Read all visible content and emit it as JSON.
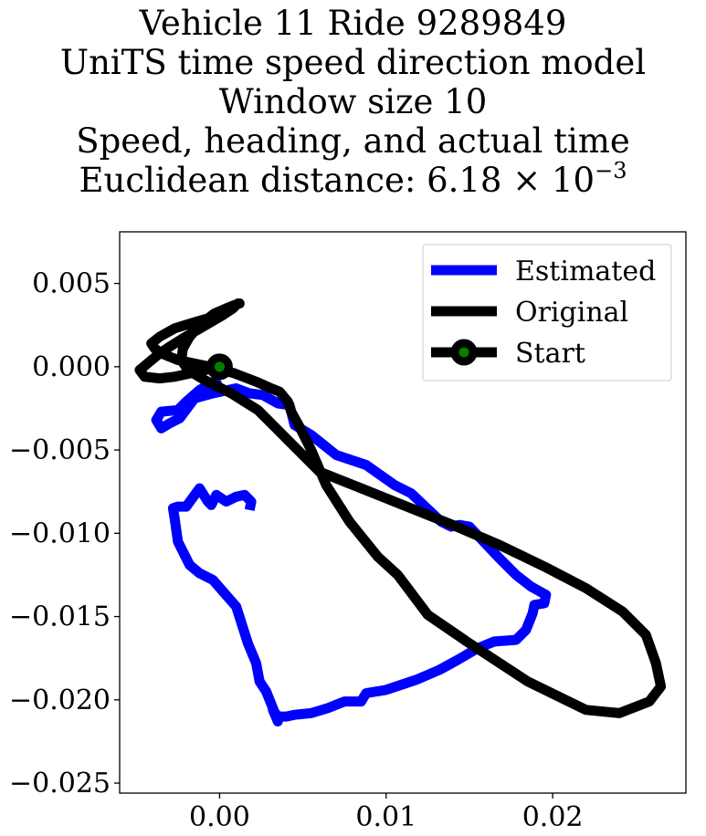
{
  "title_lines": [
    "Vehicle 11 Ride 9289849",
    "UniTS time speed direction model",
    "Window size 10",
    "Speed, heading, and actual time"
  ],
  "distance_line": {
    "prefix": "Euclidean distance: 6.18",
    "times": "×",
    "base": "10",
    "exponent": "−3"
  },
  "chart_data": {
    "type": "line",
    "xlim": [
      -0.006,
      0.028
    ],
    "ylim": [
      -0.0256,
      0.0081
    ],
    "xticks": [
      0.0,
      0.01,
      0.02
    ],
    "xtick_labels": [
      "0.00",
      "0.01",
      "0.02"
    ],
    "yticks": [
      0.005,
      0.0,
      -0.005,
      -0.01,
      -0.015,
      -0.02,
      -0.025
    ],
    "ytick_labels": [
      "0.005",
      "0.000",
      "−0.005",
      "−0.010",
      "−0.015",
      "−0.020",
      "−0.025"
    ],
    "grid": false,
    "legend_position": "top-right",
    "series": [
      {
        "name": "Estimated",
        "color": "#0000ff",
        "x": [
          0.0,
          -0.0012,
          -0.002,
          -0.0025,
          -0.0035,
          -0.0038,
          -0.0035,
          -0.003,
          -0.0024,
          -0.0015,
          -0.0004,
          0.001,
          0.0018,
          0.0026,
          0.0035,
          0.0042,
          0.0045,
          0.0055,
          0.007,
          0.0088,
          0.0105,
          0.0115,
          0.0133,
          0.0139,
          0.0144,
          0.015,
          0.0168,
          0.0178,
          0.0187,
          0.0196,
          0.0195,
          0.0189,
          0.0188,
          0.0184,
          0.0178,
          0.0165,
          0.0155,
          0.0143,
          0.0132,
          0.0118,
          0.01,
          0.0088,
          0.0085,
          0.0075,
          0.0065,
          0.0055,
          0.0045,
          0.004,
          0.0035,
          0.0032,
          0.0035,
          0.0032,
          0.0028,
          0.0024,
          0.0022,
          0.0017,
          0.001,
          -0.0004,
          -0.0012,
          -0.0018,
          -0.0025,
          -0.0027,
          -0.0028,
          -0.0025,
          -0.002,
          -0.0012,
          -0.0007,
          -0.0005,
          -0.0002,
          0.0004,
          0.001,
          0.0015,
          0.0019,
          0.0018
        ],
        "y": [
          -0.0007,
          -0.0014,
          -0.0021,
          -0.0026,
          -0.0027,
          -0.0032,
          -0.0037,
          -0.0034,
          -0.0031,
          -0.0019,
          -0.0016,
          -0.0013,
          -0.0016,
          -0.0017,
          -0.0022,
          -0.0023,
          -0.0035,
          -0.0041,
          -0.0053,
          -0.0059,
          -0.0071,
          -0.0076,
          -0.0093,
          -0.0096,
          -0.0095,
          -0.0096,
          -0.0115,
          -0.0125,
          -0.0132,
          -0.0137,
          -0.0142,
          -0.0143,
          -0.0148,
          -0.0158,
          -0.0164,
          -0.0165,
          -0.0169,
          -0.0176,
          -0.0182,
          -0.0188,
          -0.0194,
          -0.0196,
          -0.0201,
          -0.0201,
          -0.0205,
          -0.0208,
          -0.0209,
          -0.021,
          -0.021,
          -0.0206,
          -0.0213,
          -0.0205,
          -0.0195,
          -0.0189,
          -0.0178,
          -0.0166,
          -0.0144,
          -0.0128,
          -0.0124,
          -0.0119,
          -0.0105,
          -0.0091,
          -0.0085,
          -0.0084,
          -0.0084,
          -0.0073,
          -0.0081,
          -0.0083,
          -0.0077,
          -0.0081,
          -0.0078,
          -0.0077,
          -0.0081,
          -0.0086
        ]
      },
      {
        "name": "Original",
        "color": "#000000",
        "x": [
          0.0,
          -0.0013,
          -0.0027,
          -0.0036,
          -0.0045,
          -0.0048,
          -0.0042,
          -0.0036,
          -0.003,
          -0.0022,
          -0.001,
          0.0002,
          0.0008,
          0.0011,
          0.0012,
          0.0009,
          0.0004,
          -0.0003,
          -0.0011,
          -0.0018,
          -0.0022,
          -0.0023,
          -0.0019,
          -0.0009,
          0.0007,
          0.0023,
          0.0033,
          0.0047,
          0.006,
          0.0085,
          0.011,
          0.014,
          0.0168,
          0.0195,
          0.022,
          0.0242,
          0.0256,
          0.0262,
          0.0265,
          0.0258,
          0.024,
          0.022,
          0.0185,
          0.015,
          0.0125,
          0.0107,
          0.0095,
          0.0078,
          0.0064,
          0.0055,
          0.0048,
          0.0043,
          0.0041,
          0.0036,
          0.0031,
          0.0022,
          0.0009,
          -0.0006,
          -0.0025,
          -0.0035,
          -0.0039,
          -0.0041,
          -0.0036,
          -0.0027,
          -0.0014,
          0.0
        ],
        "y": [
          0.0,
          -0.0003,
          -0.0006,
          -0.0007,
          -0.0006,
          -0.0002,
          0.0003,
          0.0008,
          0.0012,
          0.0017,
          0.0024,
          0.0031,
          0.0035,
          0.0038,
          0.0038,
          0.0037,
          0.0035,
          0.0032,
          0.0026,
          0.0018,
          0.0011,
          0.0004,
          -0.0002,
          -0.0008,
          -0.0016,
          -0.0026,
          -0.0036,
          -0.005,
          -0.0063,
          -0.0073,
          -0.0083,
          -0.0095,
          -0.0107,
          -0.012,
          -0.0133,
          -0.0147,
          -0.0161,
          -0.0178,
          -0.0192,
          -0.0201,
          -0.0208,
          -0.0206,
          -0.0189,
          -0.0166,
          -0.0149,
          -0.0125,
          -0.0114,
          -0.0093,
          -0.0071,
          -0.005,
          -0.0036,
          -0.0027,
          -0.0021,
          -0.0015,
          -0.0013,
          -0.0009,
          -0.0004,
          0.0,
          0.0004,
          0.0008,
          0.0011,
          0.0014,
          0.0018,
          0.0023,
          0.0027,
          0.0031
        ]
      }
    ],
    "start_point": {
      "name": "Start",
      "x": 0.0,
      "y": 0.0,
      "marker_face": "#008000",
      "marker_edge": "#000000"
    }
  }
}
